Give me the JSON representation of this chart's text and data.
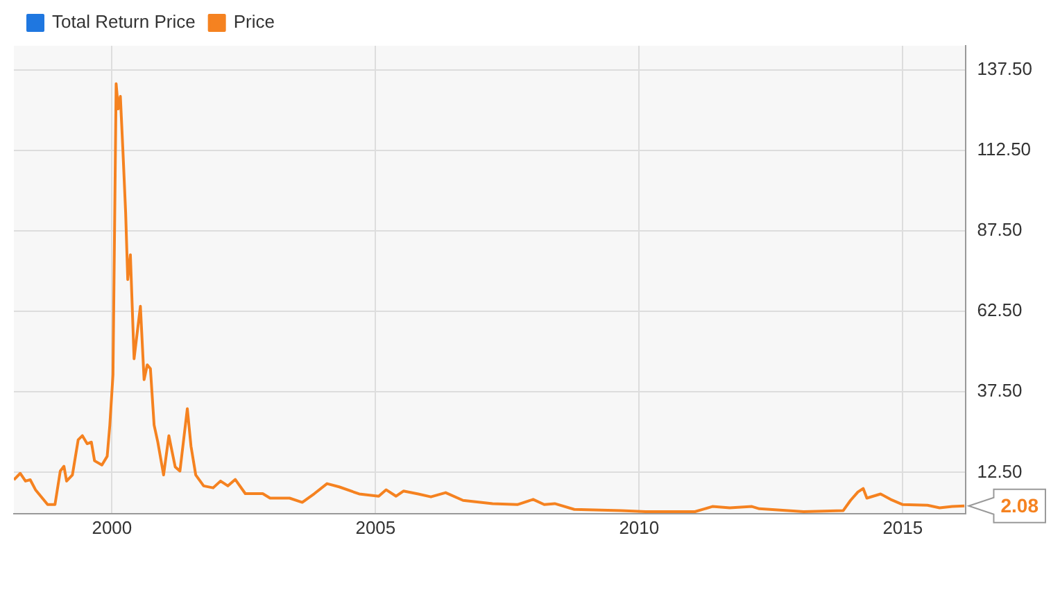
{
  "chart_data": {
    "type": "line",
    "x": [
      1998.14,
      1998.26,
      1998.36,
      1998.45,
      1998.55,
      1998.78,
      1998.92,
      1999.02,
      1999.09,
      1999.14,
      1999.25,
      1999.36,
      1999.44,
      1999.53,
      1999.61,
      1999.67,
      1999.81,
      1999.91,
      1999.96,
      2000.02,
      2000.08,
      2000.12,
      2000.16,
      2000.21,
      2000.26,
      2000.3,
      2000.35,
      2000.42,
      2000.54,
      2000.61,
      2000.67,
      2000.73,
      2000.8,
      2000.87,
      2000.98,
      2001.08,
      2001.12,
      2001.2,
      2001.29,
      2001.36,
      2001.43,
      2001.5,
      2001.59,
      2001.74,
      2001.92,
      2002.06,
      2002.2,
      2002.34,
      2002.53,
      2002.86,
      2003.0,
      2003.37,
      2003.61,
      2003.84,
      2004.08,
      2004.31,
      2004.69,
      2005.06,
      2005.2,
      2005.39,
      2005.53,
      2005.81,
      2006.05,
      2006.33,
      2006.66,
      2007.22,
      2007.69,
      2007.99,
      2008.2,
      2008.4,
      2008.77,
      2009.66,
      2010.12,
      2011.06,
      2011.39,
      2011.72,
      2012.14,
      2012.28,
      2013.12,
      2013.87,
      2014.01,
      2014.15,
      2014.25,
      2014.32,
      2014.58,
      2014.77,
      2015.0,
      2015.47,
      2015.7,
      2015.94,
      2016.17
    ],
    "series": [
      {
        "name": "Total Return Price",
        "color": "#1f77e0",
        "values": [
          null,
          null,
          null,
          null,
          null,
          null,
          null,
          null,
          null,
          null,
          null,
          null,
          null,
          null,
          null,
          null,
          null,
          null,
          null,
          null,
          null,
          null,
          null,
          null,
          null,
          null,
          null,
          null,
          null,
          null,
          null,
          null,
          null,
          null,
          null,
          null,
          null,
          null,
          null,
          null,
          null,
          null,
          null,
          null,
          null,
          null,
          null,
          null,
          null,
          null,
          null,
          null,
          null,
          null,
          null,
          null,
          null,
          null,
          null,
          null,
          null,
          null,
          null,
          null,
          null,
          null,
          null,
          null,
          null,
          null,
          null,
          null,
          null,
          null,
          null,
          null,
          null,
          null,
          null,
          null,
          null,
          null,
          null,
          null,
          null,
          null,
          null,
          null,
          null,
          null,
          null
        ]
      },
      {
        "name": "Price",
        "color": "#f58220",
        "values": [
          10.2,
          12.2,
          9.8,
          10.2,
          7.1,
          2.5,
          2.5,
          12.9,
          14.4,
          9.8,
          11.7,
          22.6,
          23.9,
          21.4,
          21.9,
          16.1,
          14.8,
          17.5,
          27.2,
          42.8,
          133.2,
          125.4,
          129.3,
          111.8,
          93.2,
          72.4,
          80.1,
          47.8,
          64.1,
          41.3,
          45.9,
          44.7,
          27.2,
          21.9,
          11.7,
          23.9,
          20.6,
          14.2,
          12.9,
          22.6,
          32.3,
          20.6,
          11.7,
          8.3,
          7.7,
          9.8,
          8.3,
          10.3,
          5.9,
          5.9,
          4.5,
          4.5,
          3.2,
          5.9,
          9.0,
          8.0,
          5.8,
          5.1,
          7.1,
          5.1,
          6.7,
          5.8,
          4.9,
          6.2,
          3.8,
          2.8,
          2.5,
          4.1,
          2.5,
          2.8,
          1.0,
          0.6,
          0.3,
          0.3,
          1.9,
          1.5,
          1.9,
          1.2,
          0.3,
          0.6,
          3.8,
          6.4,
          7.5,
          4.5,
          5.8,
          4.1,
          2.5,
          2.3,
          1.5,
          1.9,
          2.08
        ]
      }
    ],
    "xlim": [
      1998.14,
      2016.2
    ],
    "xticks": [
      2000,
      2005,
      2010,
      2015
    ],
    "ylim": [
      -0.3,
      145
    ],
    "yticks": [
      {
        "value": 12.5,
        "label": "12.50"
      },
      {
        "value": 37.5,
        "label": "37.50"
      },
      {
        "value": 62.5,
        "label": "62.50"
      },
      {
        "value": 87.5,
        "label": "87.50"
      },
      {
        "value": 112.5,
        "label": "112.50"
      },
      {
        "value": 137.5,
        "label": "137.50"
      }
    ],
    "grid": true,
    "legend": "top left",
    "annotations": [
      "2.08"
    ]
  }
}
